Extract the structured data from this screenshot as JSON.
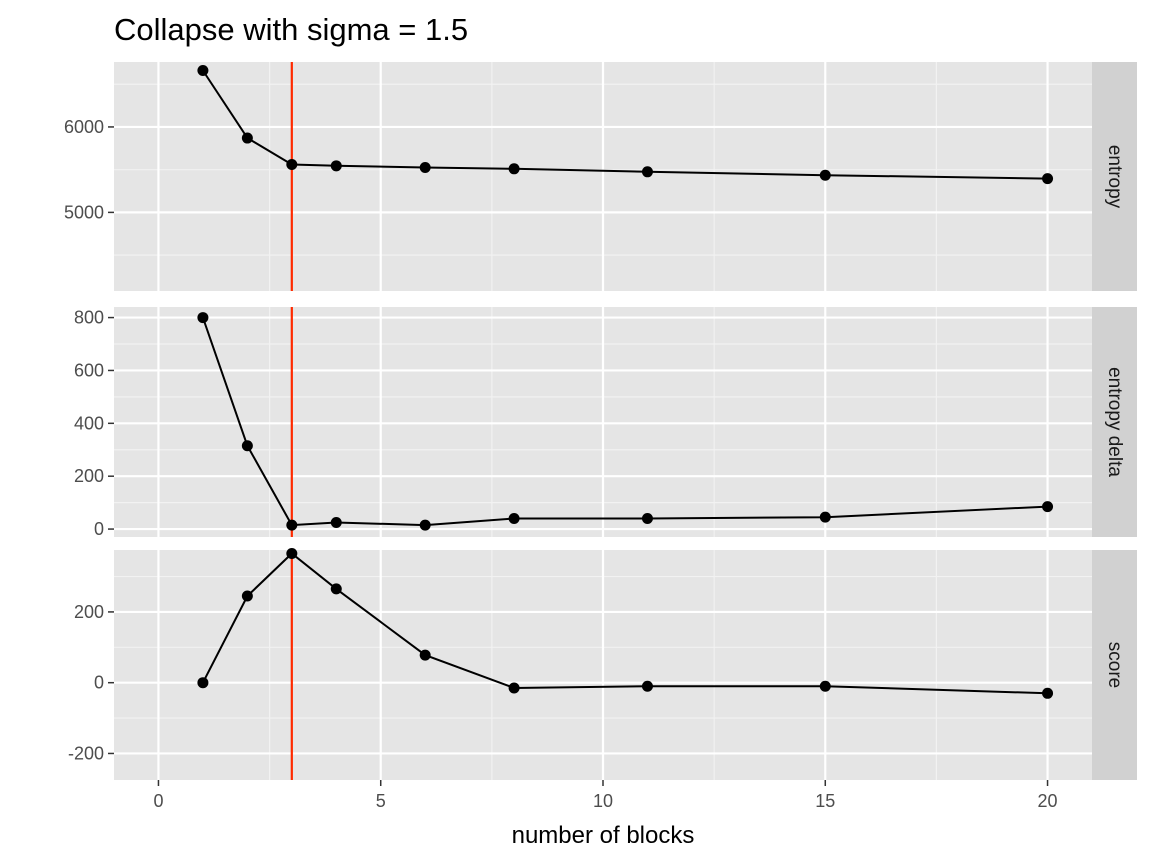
{
  "chart_data": {
    "type": "line",
    "title": "Collapse with sigma = 1.5",
    "xlabel": "number of blocks",
    "xlim": [
      -1,
      21
    ],
    "x_ticks": [
      0,
      5,
      10,
      15,
      20
    ],
    "x": [
      1,
      2,
      3,
      4,
      6,
      8,
      11,
      15,
      20
    ],
    "vline": {
      "x": 3,
      "color": "#ff2a00"
    },
    "line_color": "#000000",
    "panel_bg": "#e5e5e5",
    "strip_bg": "#d1d1d1",
    "grid": true,
    "legend": "none",
    "panels": [
      {
        "name": "entropy",
        "ylim": [
          4080,
          6760
        ],
        "y_ticks": [
          5000,
          6000
        ],
        "values": [
          6660,
          5870,
          5560,
          5545,
          5525,
          5510,
          5475,
          5435,
          5395
        ]
      },
      {
        "name": "entropy delta",
        "ylim": [
          -30,
          840
        ],
        "y_ticks": [
          0,
          200,
          400,
          600,
          800
        ],
        "values": [
          800,
          315,
          15,
          25,
          15,
          40,
          40,
          45,
          85
        ]
      },
      {
        "name": "score",
        "ylim": [
          -275,
          375
        ],
        "y_ticks": [
          -200,
          0,
          200
        ],
        "values": [
          0,
          245,
          365,
          265,
          78,
          -15,
          -10,
          -10,
          -30
        ]
      }
    ]
  }
}
